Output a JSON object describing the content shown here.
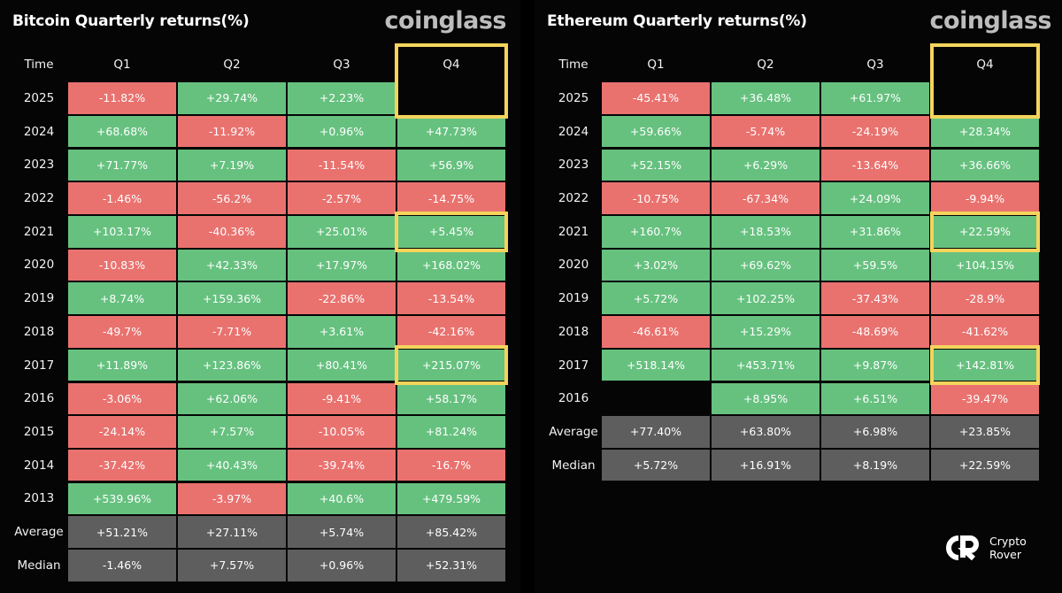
{
  "colors": {
    "positive": "#66c17f",
    "negative": "#e9726f",
    "stat": "#5e5e5e",
    "highlight": "#f5d45c"
  },
  "watermark": {
    "name": "Crypto Rover",
    "lines": [
      "Crypto",
      "Rover"
    ],
    "icon": "crypto-rover-logo"
  },
  "chart_data": [
    {
      "type": "table",
      "id": "btc",
      "title": "Bitcoin Quarterly returns(%)",
      "brand": "coinglass",
      "time_label": "Time",
      "columns": [
        "Q1",
        "Q2",
        "Q3",
        "Q4"
      ],
      "rows": [
        {
          "label": "2025",
          "values": [
            "-11.82%",
            "+29.74%",
            "+2.23%",
            ""
          ],
          "signs": [
            "neg",
            "pos",
            "pos",
            "none"
          ]
        },
        {
          "label": "2024",
          "values": [
            "+68.68%",
            "-11.92%",
            "+0.96%",
            "+47.73%"
          ],
          "signs": [
            "pos",
            "neg",
            "pos",
            "pos"
          ]
        },
        {
          "label": "2023",
          "values": [
            "+71.77%",
            "+7.19%",
            "-11.54%",
            "+56.9%"
          ],
          "signs": [
            "pos",
            "pos",
            "neg",
            "pos"
          ]
        },
        {
          "label": "2022",
          "values": [
            "-1.46%",
            "-56.2%",
            "-2.57%",
            "-14.75%"
          ],
          "signs": [
            "neg",
            "neg",
            "neg",
            "neg"
          ]
        },
        {
          "label": "2021",
          "values": [
            "+103.17%",
            "-40.36%",
            "+25.01%",
            "+5.45%"
          ],
          "signs": [
            "pos",
            "neg",
            "pos",
            "pos"
          ]
        },
        {
          "label": "2020",
          "values": [
            "-10.83%",
            "+42.33%",
            "+17.97%",
            "+168.02%"
          ],
          "signs": [
            "neg",
            "pos",
            "pos",
            "pos"
          ]
        },
        {
          "label": "2019",
          "values": [
            "+8.74%",
            "+159.36%",
            "-22.86%",
            "-13.54%"
          ],
          "signs": [
            "pos",
            "pos",
            "neg",
            "neg"
          ]
        },
        {
          "label": "2018",
          "values": [
            "-49.7%",
            "-7.71%",
            "+3.61%",
            "-42.16%"
          ],
          "signs": [
            "neg",
            "neg",
            "pos",
            "neg"
          ]
        },
        {
          "label": "2017",
          "values": [
            "+11.89%",
            "+123.86%",
            "+80.41%",
            "+215.07%"
          ],
          "signs": [
            "pos",
            "pos",
            "pos",
            "pos"
          ]
        },
        {
          "label": "2016",
          "values": [
            "-3.06%",
            "+62.06%",
            "-9.41%",
            "+58.17%"
          ],
          "signs": [
            "neg",
            "pos",
            "neg",
            "pos"
          ]
        },
        {
          "label": "2015",
          "values": [
            "-24.14%",
            "+7.57%",
            "-10.05%",
            "+81.24%"
          ],
          "signs": [
            "neg",
            "pos",
            "neg",
            "pos"
          ]
        },
        {
          "label": "2014",
          "values": [
            "-37.42%",
            "+40.43%",
            "-39.74%",
            "-16.7%"
          ],
          "signs": [
            "neg",
            "pos",
            "neg",
            "neg"
          ]
        },
        {
          "label": "2013",
          "values": [
            "+539.96%",
            "-3.97%",
            "+40.6%",
            "+479.59%"
          ],
          "signs": [
            "pos",
            "neg",
            "pos",
            "pos"
          ]
        },
        {
          "label": "Average",
          "values": [
            "+51.21%",
            "+27.11%",
            "+5.74%",
            "+85.42%"
          ],
          "signs": [
            "stat",
            "stat",
            "stat",
            "stat"
          ]
        },
        {
          "label": "Median",
          "values": [
            "-1.46%",
            "+7.57%",
            "+0.96%",
            "+52.31%"
          ],
          "signs": [
            "stat",
            "stat",
            "stat",
            "stat"
          ]
        }
      ],
      "highlighted": [
        {
          "row": "2025",
          "column": "Q4"
        },
        {
          "row": "2021",
          "column": "Q4"
        },
        {
          "row": "2017",
          "column": "Q4"
        }
      ]
    },
    {
      "type": "table",
      "id": "eth",
      "title": "Ethereum Quarterly returns(%)",
      "brand": "coinglass",
      "time_label": "Time",
      "columns": [
        "Q1",
        "Q2",
        "Q3",
        "Q4"
      ],
      "rows": [
        {
          "label": "2025",
          "values": [
            "-45.41%",
            "+36.48%",
            "+61.97%",
            ""
          ],
          "signs": [
            "neg",
            "pos",
            "pos",
            "none"
          ]
        },
        {
          "label": "2024",
          "values": [
            "+59.66%",
            "-5.74%",
            "-24.19%",
            "+28.34%"
          ],
          "signs": [
            "pos",
            "neg",
            "neg",
            "pos"
          ]
        },
        {
          "label": "2023",
          "values": [
            "+52.15%",
            "+6.29%",
            "-13.64%",
            "+36.66%"
          ],
          "signs": [
            "pos",
            "pos",
            "neg",
            "pos"
          ]
        },
        {
          "label": "2022",
          "values": [
            "-10.75%",
            "-67.34%",
            "+24.09%",
            "-9.94%"
          ],
          "signs": [
            "neg",
            "neg",
            "pos",
            "neg"
          ]
        },
        {
          "label": "2021",
          "values": [
            "+160.7%",
            "+18.53%",
            "+31.86%",
            "+22.59%"
          ],
          "signs": [
            "pos",
            "pos",
            "pos",
            "pos"
          ]
        },
        {
          "label": "2020",
          "values": [
            "+3.02%",
            "+69.62%",
            "+59.5%",
            "+104.15%"
          ],
          "signs": [
            "pos",
            "pos",
            "pos",
            "pos"
          ]
        },
        {
          "label": "2019",
          "values": [
            "+5.72%",
            "+102.25%",
            "-37.43%",
            "-28.9%"
          ],
          "signs": [
            "pos",
            "pos",
            "neg",
            "neg"
          ]
        },
        {
          "label": "2018",
          "values": [
            "-46.61%",
            "+15.29%",
            "-48.69%",
            "-41.62%"
          ],
          "signs": [
            "neg",
            "pos",
            "neg",
            "neg"
          ]
        },
        {
          "label": "2017",
          "values": [
            "+518.14%",
            "+453.71%",
            "+9.87%",
            "+142.81%"
          ],
          "signs": [
            "pos",
            "pos",
            "pos",
            "pos"
          ]
        },
        {
          "label": "2016",
          "values": [
            "",
            "+8.95%",
            "+6.51%",
            "-39.47%"
          ],
          "signs": [
            "none",
            "pos",
            "pos",
            "neg"
          ]
        },
        {
          "label": "Average",
          "values": [
            "+77.40%",
            "+63.80%",
            "+6.98%",
            "+23.85%"
          ],
          "signs": [
            "stat",
            "stat",
            "stat",
            "stat"
          ]
        },
        {
          "label": "Median",
          "values": [
            "+5.72%",
            "+16.91%",
            "+8.19%",
            "+22.59%"
          ],
          "signs": [
            "stat",
            "stat",
            "stat",
            "stat"
          ]
        }
      ],
      "highlighted": [
        {
          "row": "2025",
          "column": "Q4"
        },
        {
          "row": "2021",
          "column": "Q4"
        },
        {
          "row": "2017",
          "column": "Q4"
        }
      ]
    }
  ]
}
